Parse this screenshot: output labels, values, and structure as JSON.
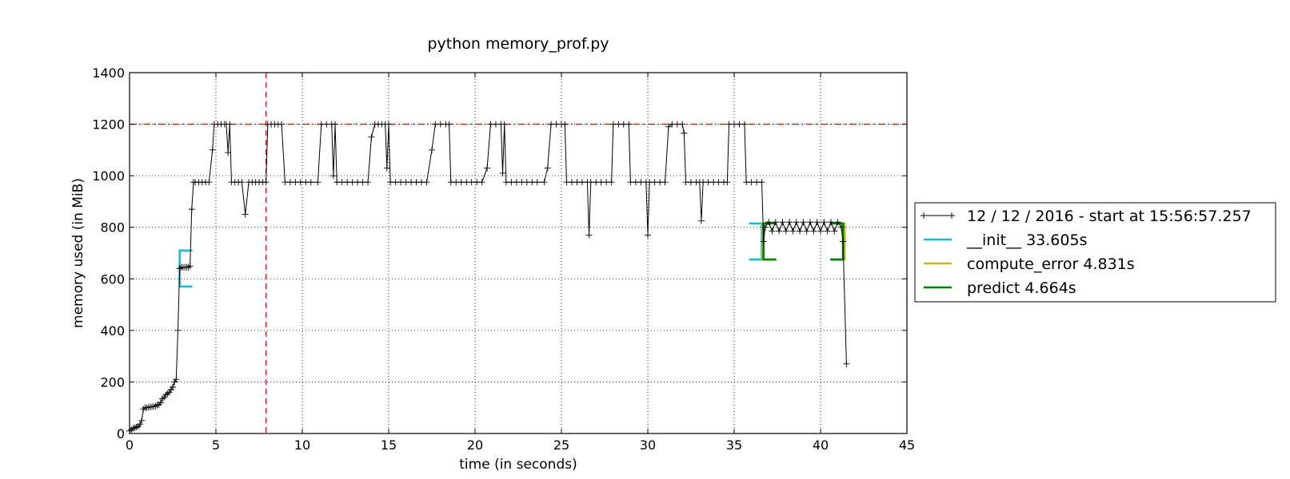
{
  "chart_data": {
    "type": "line",
    "title": "python memory_prof.py",
    "xlabel": "time (in seconds)",
    "ylabel": "memory used (in MiB)",
    "xlim": [
      0,
      45
    ],
    "ylim": [
      0,
      1400
    ],
    "xticks": [
      0,
      5,
      10,
      15,
      20,
      25,
      30,
      35,
      40,
      45
    ],
    "yticks": [
      0,
      200,
      400,
      600,
      800,
      1000,
      1200,
      1400
    ],
    "grid": true,
    "legend_position": "right",
    "reference_lines": [
      {
        "orientation": "horizontal",
        "value": 1200,
        "color": "#ff0000",
        "style": "dash-dot"
      },
      {
        "orientation": "vertical",
        "value": 7.9,
        "color": "#ff0000",
        "style": "dashed"
      }
    ],
    "series": [
      {
        "name": "12 / 12 / 2016 - start at 15:56:57.257",
        "color": "#000000",
        "marker": "plus",
        "points": [
          [
            0,
            10
          ],
          [
            0.1,
            15
          ],
          [
            0.2,
            20
          ],
          [
            0.3,
            22
          ],
          [
            0.4,
            25
          ],
          [
            0.5,
            28
          ],
          [
            0.6,
            35
          ],
          [
            0.7,
            50
          ],
          [
            0.8,
            95
          ],
          [
            0.9,
            100
          ],
          [
            1.0,
            100
          ],
          [
            1.1,
            102
          ],
          [
            1.2,
            103
          ],
          [
            1.3,
            104
          ],
          [
            1.4,
            105
          ],
          [
            1.5,
            106
          ],
          [
            1.6,
            110
          ],
          [
            1.7,
            112
          ],
          [
            1.8,
            120
          ],
          [
            1.9,
            135
          ],
          [
            2.0,
            140
          ],
          [
            2.1,
            150
          ],
          [
            2.2,
            155
          ],
          [
            2.3,
            160
          ],
          [
            2.4,
            170
          ],
          [
            2.5,
            180
          ],
          [
            2.6,
            200
          ],
          [
            2.7,
            210
          ],
          [
            2.8,
            400
          ],
          [
            2.9,
            640
          ],
          [
            3.0,
            645
          ],
          [
            3.1,
            645
          ],
          [
            3.2,
            645
          ],
          [
            3.3,
            645
          ],
          [
            3.4,
            645
          ],
          [
            3.5,
            650
          ],
          [
            3.6,
            870
          ],
          [
            3.7,
            975
          ],
          [
            3.8,
            975
          ],
          [
            4.0,
            975
          ],
          [
            4.2,
            975
          ],
          [
            4.4,
            975
          ],
          [
            4.6,
            975
          ],
          [
            4.8,
            1100
          ],
          [
            4.9,
            1200
          ],
          [
            5.1,
            1200
          ],
          [
            5.3,
            1200
          ],
          [
            5.5,
            1200
          ],
          [
            5.6,
            1200
          ],
          [
            5.7,
            1090
          ],
          [
            5.8,
            1200
          ],
          [
            5.9,
            975
          ],
          [
            6.1,
            975
          ],
          [
            6.3,
            975
          ],
          [
            6.5,
            975
          ],
          [
            6.7,
            850
          ],
          [
            6.9,
            975
          ],
          [
            7.1,
            975
          ],
          [
            7.3,
            975
          ],
          [
            7.5,
            975
          ],
          [
            7.7,
            975
          ],
          [
            7.9,
            975
          ],
          [
            8.0,
            1200
          ],
          [
            8.2,
            1200
          ],
          [
            8.4,
            1200
          ],
          [
            8.6,
            1200
          ],
          [
            8.8,
            1200
          ],
          [
            9.0,
            975
          ],
          [
            9.3,
            975
          ],
          [
            9.6,
            975
          ],
          [
            9.9,
            975
          ],
          [
            10.2,
            975
          ],
          [
            10.5,
            975
          ],
          [
            10.9,
            975
          ],
          [
            11.1,
            1200
          ],
          [
            11.4,
            1200
          ],
          [
            11.7,
            1200
          ],
          [
            11.8,
            1000
          ],
          [
            11.9,
            1200
          ],
          [
            12.0,
            975
          ],
          [
            12.3,
            975
          ],
          [
            12.6,
            975
          ],
          [
            12.9,
            975
          ],
          [
            13.2,
            975
          ],
          [
            13.5,
            975
          ],
          [
            13.8,
            975
          ],
          [
            14.0,
            1150
          ],
          [
            14.2,
            1200
          ],
          [
            14.4,
            1200
          ],
          [
            14.6,
            1200
          ],
          [
            14.8,
            1200
          ],
          [
            14.9,
            1030
          ],
          [
            15.0,
            1200
          ],
          [
            15.1,
            975
          ],
          [
            15.4,
            975
          ],
          [
            15.7,
            975
          ],
          [
            16.0,
            975
          ],
          [
            16.3,
            975
          ],
          [
            16.6,
            975
          ],
          [
            16.9,
            975
          ],
          [
            17.2,
            975
          ],
          [
            17.5,
            1100
          ],
          [
            17.7,
            1200
          ],
          [
            18.0,
            1200
          ],
          [
            18.3,
            1200
          ],
          [
            18.5,
            1200
          ],
          [
            18.6,
            975
          ],
          [
            18.9,
            975
          ],
          [
            19.2,
            975
          ],
          [
            19.5,
            975
          ],
          [
            19.8,
            975
          ],
          [
            20.1,
            975
          ],
          [
            20.4,
            975
          ],
          [
            20.7,
            1030
          ],
          [
            20.9,
            1200
          ],
          [
            21.2,
            1200
          ],
          [
            21.5,
            1200
          ],
          [
            21.6,
            1010
          ],
          [
            21.7,
            1200
          ],
          [
            21.8,
            975
          ],
          [
            22.1,
            975
          ],
          [
            22.4,
            975
          ],
          [
            22.7,
            975
          ],
          [
            23.0,
            975
          ],
          [
            23.3,
            975
          ],
          [
            23.6,
            975
          ],
          [
            24.0,
            975
          ],
          [
            24.2,
            1030
          ],
          [
            24.4,
            1200
          ],
          [
            24.7,
            1200
          ],
          [
            25.0,
            1200
          ],
          [
            25.2,
            1200
          ],
          [
            25.3,
            975
          ],
          [
            25.6,
            975
          ],
          [
            25.9,
            975
          ],
          [
            26.2,
            975
          ],
          [
            26.5,
            975
          ],
          [
            26.6,
            770
          ],
          [
            26.7,
            975
          ],
          [
            27.0,
            975
          ],
          [
            27.3,
            975
          ],
          [
            27.6,
            975
          ],
          [
            27.9,
            975
          ],
          [
            28.0,
            1200
          ],
          [
            28.3,
            1200
          ],
          [
            28.6,
            1200
          ],
          [
            28.9,
            1200
          ],
          [
            29.0,
            975
          ],
          [
            29.3,
            975
          ],
          [
            29.6,
            975
          ],
          [
            29.9,
            975
          ],
          [
            30.0,
            770
          ],
          [
            30.1,
            975
          ],
          [
            30.4,
            975
          ],
          [
            30.7,
            975
          ],
          [
            31.0,
            975
          ],
          [
            31.2,
            1190
          ],
          [
            31.4,
            1200
          ],
          [
            31.7,
            1200
          ],
          [
            32.0,
            1200
          ],
          [
            32.1,
            1165
          ],
          [
            32.2,
            975
          ],
          [
            32.5,
            975
          ],
          [
            32.8,
            975
          ],
          [
            33.0,
            975
          ],
          [
            33.1,
            825
          ],
          [
            33.2,
            975
          ],
          [
            33.5,
            975
          ],
          [
            33.8,
            975
          ],
          [
            34.1,
            975
          ],
          [
            34.4,
            975
          ],
          [
            34.6,
            975
          ],
          [
            34.7,
            1200
          ],
          [
            35.0,
            1200
          ],
          [
            35.3,
            1200
          ],
          [
            35.6,
            1200
          ],
          [
            35.7,
            975
          ],
          [
            36.0,
            975
          ],
          [
            36.3,
            975
          ],
          [
            36.6,
            975
          ],
          [
            36.7,
            745
          ],
          [
            36.8,
            800
          ],
          [
            37.0,
            820
          ],
          [
            37.2,
            785
          ],
          [
            37.4,
            820
          ],
          [
            37.6,
            785
          ],
          [
            37.8,
            820
          ],
          [
            38.0,
            785
          ],
          [
            38.2,
            820
          ],
          [
            38.4,
            785
          ],
          [
            38.6,
            820
          ],
          [
            38.8,
            785
          ],
          [
            39.0,
            820
          ],
          [
            39.2,
            785
          ],
          [
            39.4,
            820
          ],
          [
            39.6,
            785
          ],
          [
            39.8,
            820
          ],
          [
            40.0,
            785
          ],
          [
            40.2,
            820
          ],
          [
            40.4,
            785
          ],
          [
            40.6,
            820
          ],
          [
            40.8,
            785
          ],
          [
            41.0,
            820
          ],
          [
            41.2,
            800
          ],
          [
            41.3,
            745
          ],
          [
            41.5,
            270
          ]
        ]
      },
      {
        "name": "__init__ 33.605s",
        "color": "#17becf",
        "bracket": {
          "start": 2.9,
          "end": 36.6,
          "low": 570,
          "high": 815,
          "low_end": 675,
          "high_start": 710
        }
      },
      {
        "name": "compute_error 4.831s",
        "color": "#bcbd22",
        "bracket": {
          "start": 36.65,
          "end": 41.4,
          "low": 675,
          "high": 815
        }
      },
      {
        "name": "predict 4.664s",
        "color": "#008000",
        "bracket": {
          "start": 36.7,
          "end": 41.3,
          "low": 675,
          "high": 815
        }
      }
    ]
  }
}
